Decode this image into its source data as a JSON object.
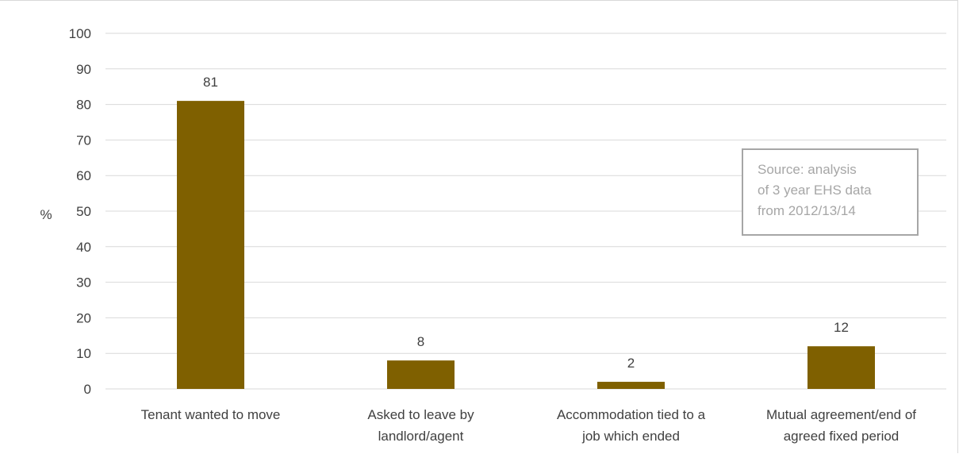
{
  "chart_data": {
    "type": "bar",
    "categories": [
      [
        "Tenant wanted to move"
      ],
      [
        "Asked to leave by",
        "landlord/agent"
      ],
      [
        "Accommodation tied to a",
        "job which ended"
      ],
      [
        "Mutual agreement/end of",
        "agreed fixed period"
      ]
    ],
    "values": [
      81,
      8,
      2,
      12
    ],
    "data_labels": [
      "81",
      "8",
      "2",
      "12"
    ],
    "ylabel": "%",
    "ylim": [
      0,
      100
    ],
    "yticks": [
      0,
      10,
      20,
      30,
      40,
      50,
      60,
      70,
      80,
      90,
      100
    ],
    "grid": true,
    "bar_color": "#7f6000",
    "annotation": {
      "lines": [
        "Source: analysis",
        "of 3 year EHS data",
        "from 2012/13/14"
      ]
    }
  }
}
